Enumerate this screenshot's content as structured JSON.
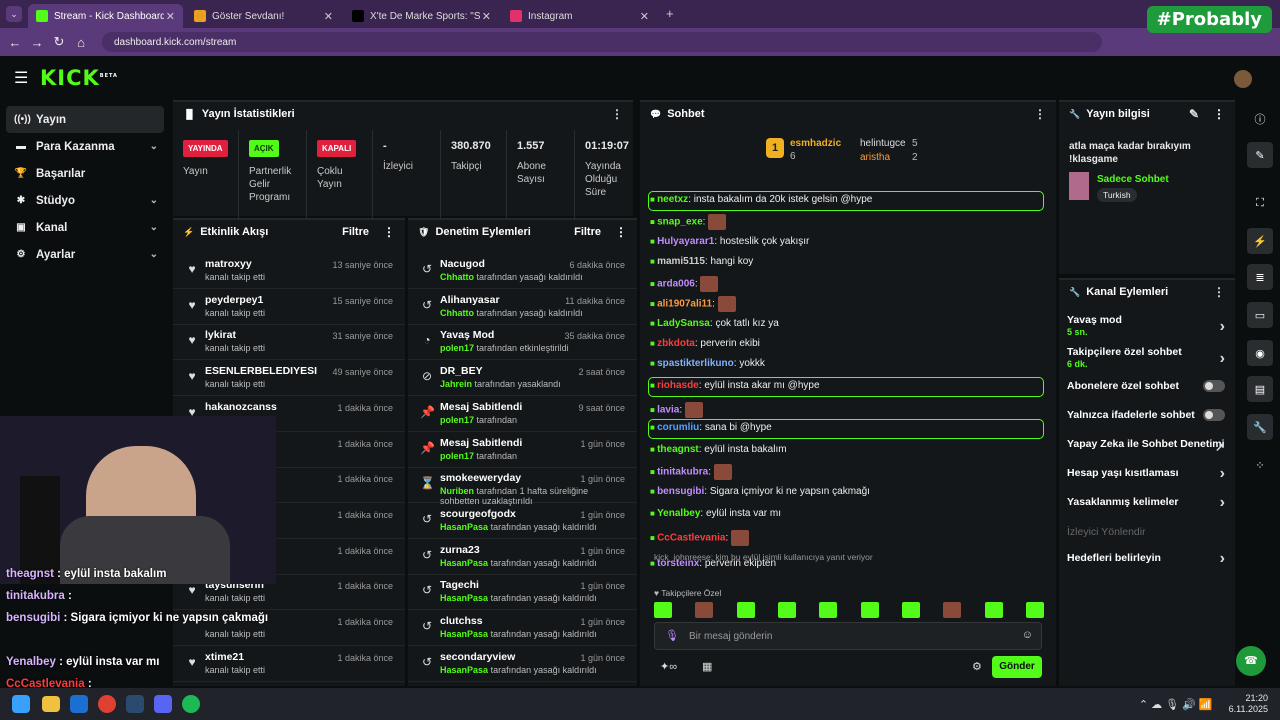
{
  "browser": {
    "tabs": [
      {
        "label": "Stream - Kick Dashboard",
        "active": true,
        "color": "#53fc18"
      },
      {
        "label": "Göster Sevdanı!",
        "active": false,
        "color": "#e8a020"
      },
      {
        "label": "X'te De Marke Sports: \"SON DA",
        "active": false,
        "color": "#000000"
      },
      {
        "label": "Instagram",
        "active": false,
        "color": "#e1306c"
      }
    ],
    "url": "dashboard.kick.com/stream",
    "overlay_label": "#Probably"
  },
  "kick": {
    "logo": "KICK",
    "logo_sup": "BETA"
  },
  "sidebar": {
    "items": [
      {
        "label": "Yayın",
        "icon": "broadcast-icon",
        "glyph": "((•))",
        "active": true,
        "chevron": false
      },
      {
        "label": "Para Kazanma",
        "icon": "money-icon",
        "glyph": "▬",
        "active": false,
        "chevron": true
      },
      {
        "label": "Başarılar",
        "icon": "trophy-icon",
        "glyph": "🏆",
        "active": false,
        "chevron": false
      },
      {
        "label": "Stüdyo",
        "icon": "studio-icon",
        "glyph": "✱",
        "active": false,
        "chevron": true
      },
      {
        "label": "Kanal",
        "icon": "channel-icon",
        "glyph": "▣",
        "active": false,
        "chevron": true
      },
      {
        "label": "Ayarlar",
        "icon": "settings-icon",
        "glyph": "⚙",
        "active": false,
        "chevron": true
      }
    ]
  },
  "stats": {
    "title": "Yayın İstatistikleri",
    "cols": [
      {
        "badge": "YAYINDA",
        "badge_bg": "#e0203f",
        "badge_fg": "#ffffff",
        "label": "Yayın"
      },
      {
        "badge": "AÇIK",
        "badge_bg": "#53fc18",
        "badge_fg": "#0b3a00",
        "label": "Partnerlik Gelir Programı"
      },
      {
        "badge": "KAPALI",
        "badge_bg": "#e0203f",
        "badge_fg": "#ffffff",
        "label": "Çoklu Yayın"
      },
      {
        "value": "-",
        "label": "İzleyici"
      },
      {
        "value": "380.870",
        "label": "Takipçi"
      },
      {
        "value": "1.557",
        "label": "Abone Sayısı"
      },
      {
        "value": "01:19:07",
        "label": "Yayında Olduğu Süre"
      }
    ]
  },
  "activity": {
    "title": "Etkinlik Akışı",
    "filter": "Filtre",
    "rows": [
      {
        "name": "matroxyy",
        "sub": "kanalı takip etti",
        "time": "13 saniye önce"
      },
      {
        "name": "peyderpey1",
        "sub": "kanalı takip etti",
        "time": "15 saniye önce"
      },
      {
        "name": "lykirat",
        "sub": "kanalı takip etti",
        "time": "31 saniye önce"
      },
      {
        "name": "ESENLERBELEDIYESI",
        "sub": "kanalı takip etti",
        "time": "49 saniye önce"
      },
      {
        "name": "hakanozcanss",
        "sub": "kanalı takip etti",
        "time": "1 dakika önce"
      },
      {
        "name": "",
        "sub": "",
        "time": "1 dakika önce"
      },
      {
        "name": "",
        "sub": "",
        "time": "1 dakika önce"
      },
      {
        "name": "",
        "sub": "",
        "time": "1 dakika önce"
      },
      {
        "name": "",
        "sub": "",
        "time": "1 dakika önce"
      },
      {
        "name": "taysunserin",
        "sub": "kanalı takip etti",
        "time": "1 dakika önce"
      },
      {
        "name": "",
        "sub": "kanalı takip etti",
        "time": "1 dakika önce"
      },
      {
        "name": "xtime21",
        "sub": "kanalı takip etti",
        "time": "1 dakika önce"
      }
    ]
  },
  "moderation": {
    "title": "Denetim Eylemleri",
    "filter": "Filtre",
    "rows": [
      {
        "name": "Nacugod",
        "who": "Chhatto",
        "sub": "tarafından yasağı kaldırıldı",
        "time": "6 dakika önce",
        "icon": "undo-icon",
        "glyph": "↺"
      },
      {
        "name": "Alihanyasar",
        "who": "Chhatto",
        "sub": "tarafından yasağı kaldırıldı",
        "time": "11 dakika önce",
        "icon": "undo-icon",
        "glyph": "↺"
      },
      {
        "name": "Yavaş Mod",
        "who": "polen17",
        "sub": "tarafından etkinleştirildi",
        "time": "35 dakika önce",
        "icon": "slow-icon",
        "glyph": "◔"
      },
      {
        "name": "DR_BEY",
        "who": "Jahrein",
        "sub": "tarafından yasaklandı",
        "time": "2 saat önce",
        "icon": "ban-icon",
        "glyph": "⊘"
      },
      {
        "name": "Mesaj Sabitlendi",
        "who": "polen17",
        "sub": "tarafından",
        "time": "9 saat önce",
        "icon": "pin-icon",
        "glyph": "📌"
      },
      {
        "name": "Mesaj Sabitlendi",
        "who": "polen17",
        "sub": "tarafından",
        "time": "1 gün önce",
        "icon": "pin-icon",
        "glyph": "📌"
      },
      {
        "name": "smokeeweryday",
        "who": "Nuriben",
        "sub": "tarafından 1 hafta süreliğine sohbetten uzaklaştırıldı",
        "time": "1 gün önce",
        "icon": "hourglass-icon",
        "glyph": "⌛"
      },
      {
        "name": "scourgeofgodx",
        "who": "HasanPasa",
        "sub": "tarafından yasağı kaldırıldı",
        "time": "1 gün önce",
        "icon": "undo-icon",
        "glyph": "↺"
      },
      {
        "name": "zurna23",
        "who": "HasanPasa",
        "sub": "tarafından yasağı kaldırıldı",
        "time": "1 gün önce",
        "icon": "undo-icon",
        "glyph": "↺"
      },
      {
        "name": "Tagechi",
        "who": "HasanPasa",
        "sub": "tarafından yasağı kaldırıldı",
        "time": "1 gün önce",
        "icon": "undo-icon",
        "glyph": "↺"
      },
      {
        "name": "clutchss",
        "who": "HasanPasa",
        "sub": "tarafından yasağı kaldırıldı",
        "time": "1 gün önce",
        "icon": "undo-icon",
        "glyph": "↺"
      },
      {
        "name": "secondaryview",
        "who": "HasanPasa",
        "sub": "tarafından yasağı kaldırıldı",
        "time": "1 gün önce",
        "icon": "undo-icon",
        "glyph": "↺"
      }
    ]
  },
  "chat": {
    "title": "Sohbet",
    "leaders": [
      {
        "rank": "1",
        "name": "esmhadzic",
        "count": "6"
      },
      {
        "name": "helintugce",
        "count": "5"
      },
      {
        "name": "aristha",
        "count": "2"
      }
    ],
    "messages": [
      {
        "user": "neetxz",
        "color": "#53fc18",
        "text": "insta bakalım da 20k istek gelsin @hype",
        "highlight": true
      },
      {
        "user": "snap_exe",
        "color": "#53fc18",
        "text": "",
        "emote": true
      },
      {
        "user": "Hulyayarar1",
        "color": "#c08cff",
        "text": "hosteslik çok yakışır"
      },
      {
        "user": "mami5115",
        "color": "#cccccc",
        "text": "hangi koy"
      },
      {
        "user": "arda006",
        "color": "#c08cff",
        "text": "",
        "emote": true
      },
      {
        "user": "ali1907ali11",
        "color": "#ff9a3c",
        "text": "",
        "emote": true
      },
      {
        "user": "LadySansa",
        "color": "#53fc18",
        "text": "çok tatlı kız ya"
      },
      {
        "user": "zbkdota",
        "color": "#ff3c3c",
        "text": "perverin ekibi"
      },
      {
        "user": "spastikterlikuno",
        "color": "#7fb2ff",
        "text": "yokkk"
      },
      {
        "user": "riohasde",
        "color": "#ff3c3c",
        "text": "eylül insta akar mı @hype",
        "highlight": true
      },
      {
        "user": "lavia",
        "color": "#c08cff",
        "text": "",
        "emote": true
      },
      {
        "user": "corumliu",
        "color": "#53a0ff",
        "text": "sana bi @hype",
        "highlight": true
      },
      {
        "user": "theagnst",
        "color": "#53fc18",
        "text": "eylül insta bakalım"
      },
      {
        "user": "tinitakubra",
        "color": "#c08cff",
        "text": "",
        "emote": true
      },
      {
        "user": "bensugibi",
        "color": "#c08cff",
        "text": "Sigara içmiyor ki ne yapsın çakmağı"
      },
      {
        "user": "Yenalbey",
        "color": "#53fc18",
        "text": "eylül insta var mı"
      },
      {
        "user": "CcCastlevania",
        "color": "#ff3c3c",
        "text": "",
        "emote": true
      },
      {
        "user": "torsteinx",
        "color": "#c08cff",
        "text": "perverin ekipten"
      }
    ],
    "reply_line": "kick_johnreese: kim bu eylül isimli kullanıcıya yanıt veriyor",
    "followers_only": "Takipçilere Özel",
    "input_placeholder": "Bir mesaj gönderin",
    "send": "Gönder"
  },
  "stream_info": {
    "title": "Yayın bilgisi",
    "stream_title": "atla maça kadar bırakıyım !klasgame",
    "category": "Sadece Sohbet",
    "tag": "Turkish"
  },
  "channel_actions": {
    "title": "Kanal Eylemleri",
    "items": [
      {
        "label": "Yavaş mod",
        "sub": "5 sn.",
        "type": "chevron"
      },
      {
        "label": "Takipçilere özel sohbet",
        "sub": "6 dk.",
        "type": "chevron"
      },
      {
        "label": "Abonelere özel sohbet",
        "sub": "",
        "type": "toggle"
      },
      {
        "label": "Yalnızca ifadelerle sohbet",
        "sub": "",
        "type": "toggle"
      },
      {
        "label": "Yapay Zeka ile Sohbet Denetimi",
        "sub": "",
        "type": "external"
      },
      {
        "label": "Hesap yaşı kısıtlaması",
        "sub": "",
        "type": "chevron"
      },
      {
        "label": "Yasaklanmış kelimeler",
        "sub": "",
        "type": "chevron"
      },
      {
        "label": "İzleyici Yönlendir",
        "sub": "",
        "type": "disabled"
      },
      {
        "label": "Hedefleri belirleyin",
        "sub": "",
        "type": "chevron"
      }
    ]
  },
  "overlay_chat": [
    {
      "user": "theagnst",
      "text": "eylül insta bakalım"
    },
    {
      "user": "tinitakubra",
      "text": ""
    },
    {
      "user": "bensugibi",
      "text": "Sigara içmiyor ki ne yapsın çakmağı"
    },
    {
      "user": "Yenalbey",
      "text": "eylül insta var mı"
    },
    {
      "user": "CcCastlevania",
      "text": ""
    }
  ],
  "taskbar": {
    "time": "21:20",
    "date": "6.11.2025"
  }
}
